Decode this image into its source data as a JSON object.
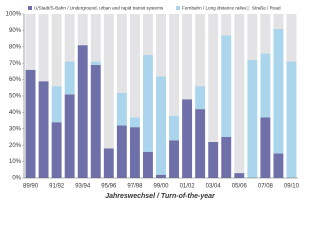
{
  "chart_data": {
    "type": "stacked_bar",
    "categories": [
      "89/90",
      null,
      "91/92",
      null,
      "93/94",
      null,
      "95/96",
      null,
      "97/98",
      null,
      "99/00",
      null,
      "01/02",
      null,
      "03/04",
      null,
      "05/06",
      null,
      "07/08",
      null,
      "09/10"
    ],
    "series": [
      {
        "name": "U/Stadt/S-Bahn / Underground, urban and rapid transit systems",
        "color": "#6f70a9",
        "values": [
          66,
          59,
          34,
          51,
          81,
          69,
          18,
          32,
          31,
          16,
          2,
          23,
          48,
          42,
          22,
          25,
          3,
          0,
          37,
          15,
          0
        ]
      },
      {
        "name": "Fernbahn / Long distance railway",
        "color": "#aad5ed",
        "values": [
          0,
          0,
          22,
          20,
          0,
          2,
          0,
          20,
          6,
          59,
          60,
          15,
          0,
          14,
          0,
          62,
          0,
          72,
          39,
          76,
          71
        ]
      },
      {
        "name": "Straße / Road",
        "color": "#e3e3e5",
        "values": [
          34,
          41,
          44,
          29,
          19,
          29,
          82,
          48,
          63,
          25,
          38,
          62,
          52,
          44,
          78,
          13,
          97,
          28,
          24,
          9,
          29
        ]
      }
    ],
    "ylim": [
      0,
      100
    ],
    "yticks": [
      {
        "value": 0,
        "label": "0%"
      },
      {
        "value": 10,
        "label": "10%"
      },
      {
        "value": 20,
        "label": "20%"
      },
      {
        "value": 30,
        "label": "30%"
      },
      {
        "value": 40,
        "label": "40%"
      },
      {
        "value": 50,
        "label": "50%"
      },
      {
        "value": 60,
        "label": "60%"
      },
      {
        "value": 70,
        "label": "70%"
      },
      {
        "value": 80,
        "label": "80%"
      },
      {
        "value": 90,
        "label": "90%"
      },
      {
        "value": 100,
        "label": "100%"
      }
    ],
    "x_label": "Jahreswechsel / Turn-of-the-year",
    "legend": "top"
  }
}
